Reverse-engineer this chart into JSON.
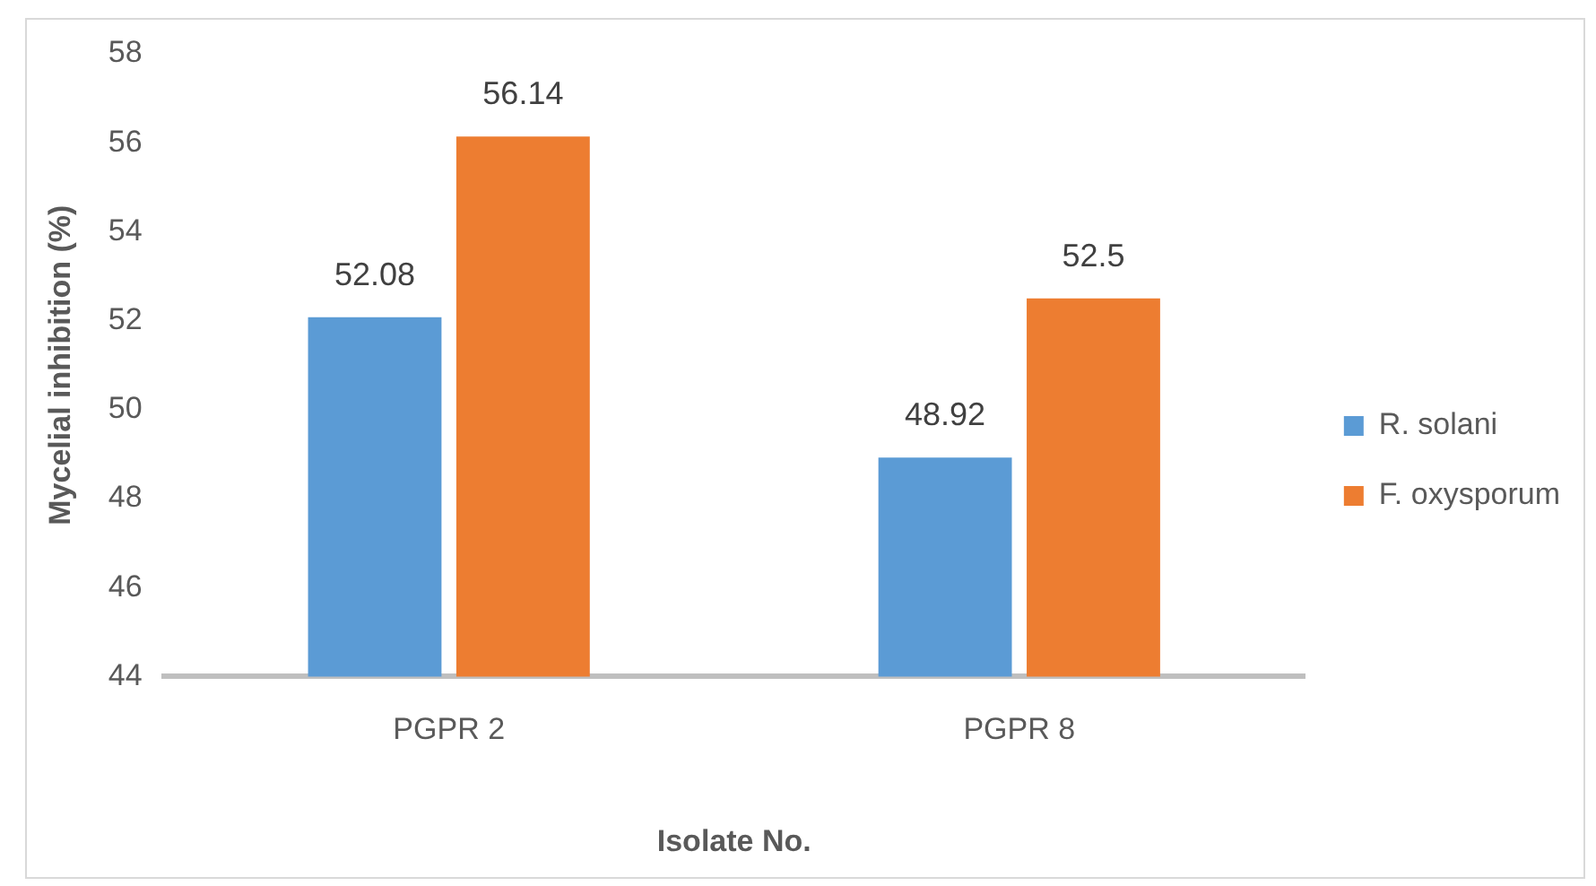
{
  "chart_data": {
    "type": "bar",
    "xlabel": "Isolate No.",
    "ylabel": "Mycelial inhibition (%)",
    "categories": [
      "PGPR 2",
      "PGPR 8"
    ],
    "series": [
      {
        "name": "R. solani",
        "color": "#5b9bd5",
        "values": [
          52.08,
          48.92
        ]
      },
      {
        "name": "F. oxysporum",
        "color": "#ed7d31",
        "values": [
          56.14,
          52.5
        ]
      }
    ],
    "ylim": [
      44,
      58
    ],
    "yticks": [
      44,
      46,
      48,
      50,
      52,
      54,
      56,
      58
    ],
    "grid": false,
    "legend": "right",
    "data_labels": true
  }
}
